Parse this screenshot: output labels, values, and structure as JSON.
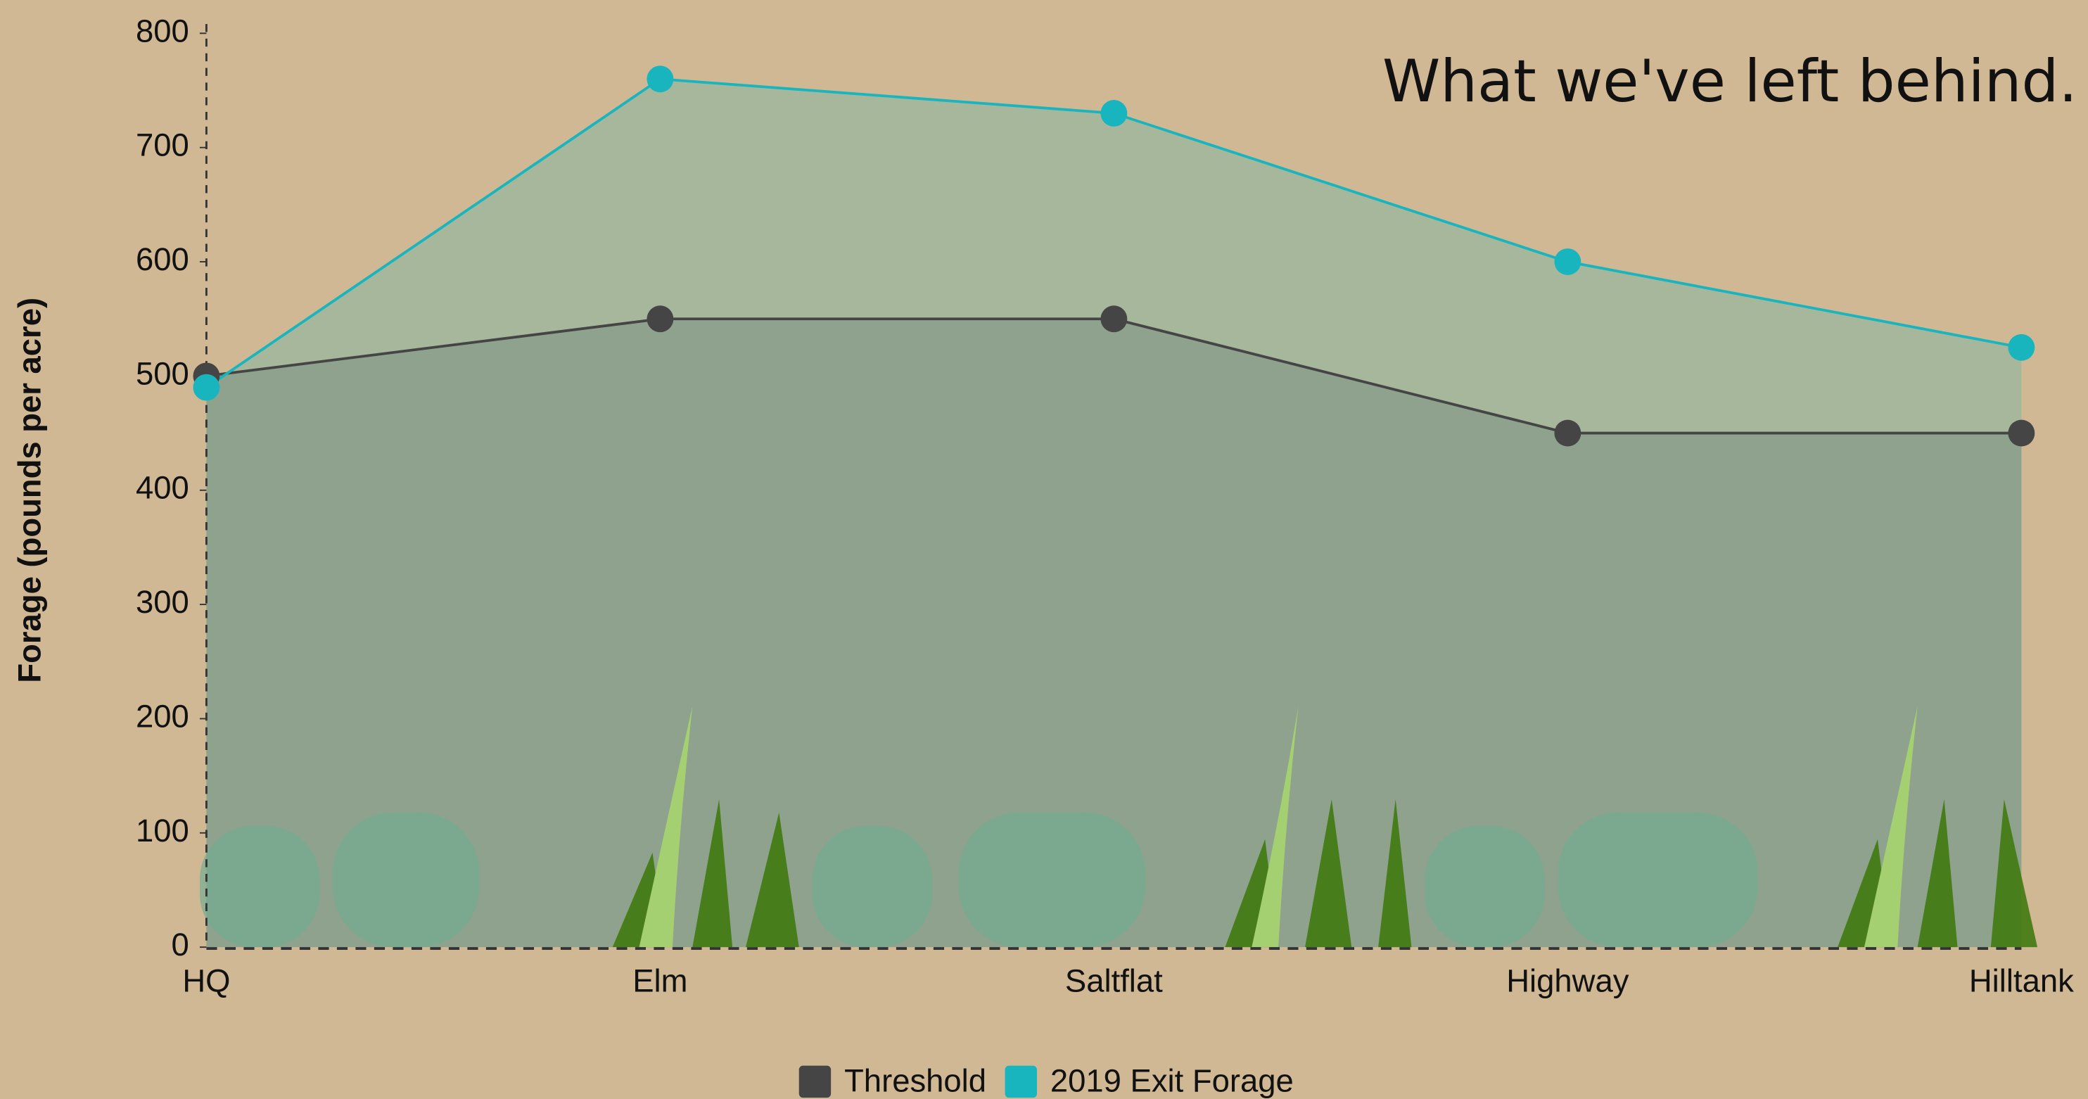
{
  "chart_data": {
    "type": "area",
    "title": "What we've left behind.",
    "y_label": "Forage (pounds per acre)",
    "categories": [
      "HQ",
      "Elm",
      "Saltflat",
      "Highway",
      "Hilltank"
    ],
    "series": [
      {
        "name": "Threshold",
        "color": "#454545",
        "area_color": "#8fa28d",
        "values": [
          500,
          550,
          550,
          450,
          450
        ]
      },
      {
        "name": "2019 Exit Forage",
        "color": "#18b5bf",
        "area_color": "#a6b79c",
        "values": [
          490,
          760,
          730,
          600,
          525
        ]
      }
    ],
    "ylim": [
      0,
      800
    ],
    "yticks": [
      0,
      100,
      200,
      300,
      400,
      500,
      600,
      700,
      800
    ],
    "legend": "bottom"
  }
}
